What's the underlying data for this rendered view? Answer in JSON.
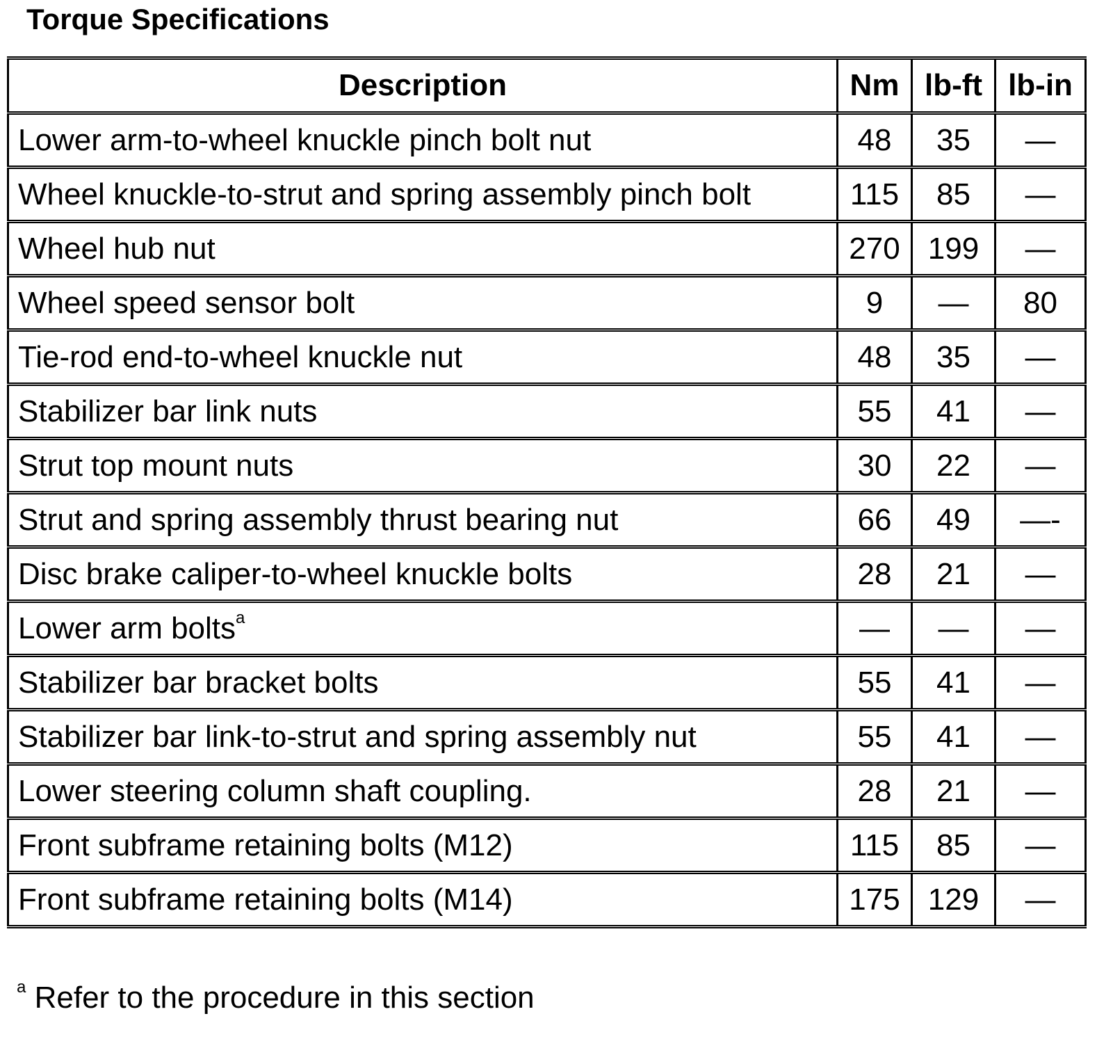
{
  "title": "Torque Specifications",
  "columns": [
    "Description",
    "Nm",
    "lb-ft",
    "lb-in"
  ],
  "rows": [
    {
      "description": "Lower arm-to-wheel knuckle pinch bolt nut",
      "nm": "48",
      "lbft": "35",
      "lbin": "—"
    },
    {
      "description": "Wheel knuckle-to-strut and spring assembly pinch bolt",
      "nm": "115",
      "lbft": "85",
      "lbin": "—"
    },
    {
      "description": "Wheel hub nut",
      "nm": "270",
      "lbft": "199",
      "lbin": "—"
    },
    {
      "description": "Wheel speed sensor bolt",
      "nm": "9",
      "lbft": "—",
      "lbin": "80"
    },
    {
      "description": "Tie-rod end-to-wheel knuckle nut",
      "nm": "48",
      "lbft": "35",
      "lbin": "—"
    },
    {
      "description": "Stabilizer bar link nuts",
      "nm": "55",
      "lbft": "41",
      "lbin": "—"
    },
    {
      "description": "Strut top mount nuts",
      "nm": "30",
      "lbft": "22",
      "lbin": "—"
    },
    {
      "description": "Strut and spring assembly thrust bearing nut",
      "nm": "66",
      "lbft": "49",
      "lbin": "—-"
    },
    {
      "description": "Disc brake caliper-to-wheel knuckle bolts",
      "nm": "28",
      "lbft": "21",
      "lbin": "—"
    },
    {
      "description": "Lower arm bolts",
      "footnote_mark": "a",
      "nm": "—",
      "lbft": "—",
      "lbin": "—"
    },
    {
      "description": "Stabilizer bar bracket bolts",
      "nm": "55",
      "lbft": "41",
      "lbin": "—"
    },
    {
      "description": "Stabilizer bar link-to-strut and spring assembly nut",
      "nm": "55",
      "lbft": "41",
      "lbin": "—"
    },
    {
      "description": "Lower steering column shaft coupling.",
      "nm": "28",
      "lbft": "21",
      "lbin": "—"
    },
    {
      "description": "Front subframe retaining bolts (M12)",
      "nm": "115",
      "lbft": "85",
      "lbin": "—"
    },
    {
      "description": "Front subframe retaining bolts (M14)",
      "nm": "175",
      "lbft": "129",
      "lbin": "—"
    }
  ],
  "footnote": {
    "mark": "a",
    "text": "Refer to the procedure in this section"
  }
}
